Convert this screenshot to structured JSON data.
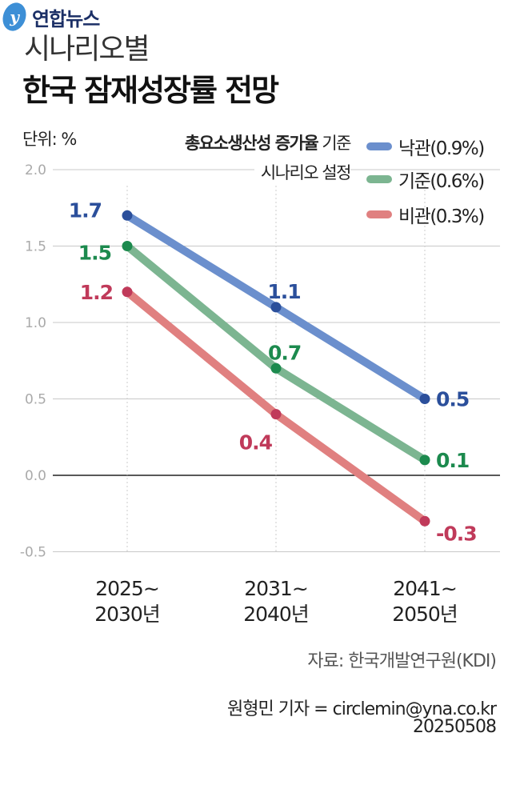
{
  "chart_data": {
    "type": "line",
    "supertitle": "시나리오별",
    "title": "한국 잠재성장률 전망",
    "unit_label": "단위: %",
    "note": {
      "bold": "총요소생산성 증가율",
      "regular": " 기준",
      "line2": "시나리오 설정"
    },
    "categories": [
      "2025~\n2030년",
      "2031~\n2040년",
      "2041~\n2050년"
    ],
    "category_lines": [
      [
        "2025~",
        "2030년"
      ],
      [
        "2031~",
        "2040년"
      ],
      [
        "2041~",
        "2050년"
      ]
    ],
    "ylim": [
      -0.5,
      2.0
    ],
    "yticks": [
      "2.0",
      "1.5",
      "1.0",
      "0.5",
      "0.0",
      "-0.5"
    ],
    "ytick_values": [
      2.0,
      1.5,
      1.0,
      0.5,
      0.0,
      -0.5
    ],
    "grid": true,
    "legend_position": "top-right",
    "series": [
      {
        "name": "낙관(0.9%)",
        "values": [
          1.7,
          1.1,
          0.5
        ],
        "labels": [
          "1.7",
          "1.1",
          "0.5"
        ],
        "line_color": "#6b8fcd",
        "point_color": "#2b4f9b"
      },
      {
        "name": "기준(0.6%)",
        "values": [
          1.5,
          0.7,
          0.1
        ],
        "labels": [
          "1.5",
          "0.7",
          "0.1"
        ],
        "line_color": "#7cb591",
        "point_color": "#1c8a4e"
      },
      {
        "name": "비관(0.3%)",
        "values": [
          1.2,
          0.4,
          -0.3
        ],
        "labels": [
          "1.2",
          "0.4",
          "-0.3"
        ],
        "line_color": "#e08080",
        "point_color": "#c03a5a"
      }
    ]
  },
  "footer": {
    "logo_text": "연합뉴스",
    "source": "자료: 한국개발연구원(KDI)",
    "reporter": "원형민 기자 = circlemin@yna.co.kr",
    "date": "20250508"
  }
}
